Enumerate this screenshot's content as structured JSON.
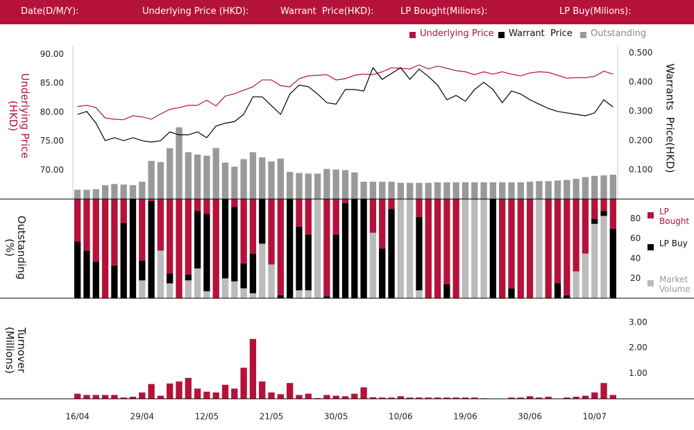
{
  "header": {
    "fields": [
      "Date(D/M/Y):",
      "Underlying Price (HKD):",
      "Warrant  Price(HKD):",
      "LP Bought(Milions):",
      "LP Buy(Milions):"
    ]
  },
  "chart_data": [
    {
      "type": "line",
      "ylabel": "Underlying Price (HKD)",
      "y2label": "Warrants  Price(HKD)",
      "legend": "top-right",
      "ylim": [
        65,
        91.5
      ],
      "yticks": [
        {
          "value": 70,
          "label": "70.00"
        },
        {
          "value": 75,
          "label": "75.00"
        },
        {
          "value": 80,
          "label": "80.00"
        },
        {
          "value": 85,
          "label": "85.00"
        },
        {
          "value": 90,
          "label": "90.00"
        }
      ],
      "y2lim": [
        0,
        0.525
      ],
      "y2ticks": [
        {
          "value": 0.1,
          "label": "0.100"
        },
        {
          "value": 0.2,
          "label": "0.200"
        },
        {
          "value": 0.3,
          "label": "0.300"
        },
        {
          "value": 0.4,
          "label": "0.400"
        },
        {
          "value": 0.5,
          "label": "0.500"
        }
      ],
      "series": [
        {
          "name": "Underlying Price",
          "color": "#b5123a",
          "values": [
            81.0,
            81.2,
            80.8,
            79.0,
            78.8,
            78.7,
            79.4,
            79.2,
            78.8,
            79.7,
            80.5,
            80.8,
            81.2,
            81.2,
            82.1,
            81.1,
            82.8,
            83.2,
            83.8,
            84.4,
            85.6,
            85.6,
            84.6,
            84.4,
            85.8,
            86.3,
            86.4,
            86.5,
            85.6,
            85.8,
            86.4,
            86.6,
            86.5,
            87.0,
            87.7,
            87.6,
            87.5,
            88.2,
            87.5,
            88.0,
            87.6,
            87.2,
            87.0,
            86.5,
            87.0,
            86.6,
            87.0,
            86.6,
            86.3,
            86.8,
            87.0,
            86.9,
            86.4,
            85.9,
            86.0,
            86.0,
            86.2,
            87.1,
            86.6
          ]
        },
        {
          "name": "Warrant  Price",
          "color": "#000000",
          "axis": "y2",
          "values": [
            0.29,
            0.3,
            0.26,
            0.2,
            0.21,
            0.2,
            0.21,
            0.2,
            0.195,
            0.2,
            0.23,
            0.22,
            0.22,
            0.23,
            0.21,
            0.25,
            0.26,
            0.265,
            0.29,
            0.35,
            0.35,
            0.32,
            0.29,
            0.36,
            0.39,
            0.385,
            0.36,
            0.33,
            0.325,
            0.375,
            0.375,
            0.37,
            0.45,
            0.41,
            0.43,
            0.45,
            0.41,
            0.445,
            0.42,
            0.39,
            0.34,
            0.355,
            0.335,
            0.375,
            0.4,
            0.375,
            0.33,
            0.37,
            0.36,
            0.34,
            0.325,
            0.31,
            0.3,
            0.295,
            0.29,
            0.285,
            0.295,
            0.34,
            0.315
          ]
        },
        {
          "name": "Outstanding",
          "color": "#999999",
          "type": "bar",
          "values": [
            66.6,
            66.6,
            66.7,
            67.4,
            67.6,
            67.5,
            67.4,
            68.0,
            71.6,
            71.4,
            73.8,
            77.4,
            73.1,
            72.7,
            72.5,
            73.8,
            71.3,
            70.6,
            71.9,
            73.1,
            72.2,
            71.5,
            72.0,
            69.7,
            69.5,
            69.4,
            69.4,
            70.2,
            70.1,
            70.0,
            69.6,
            68.0,
            68.0,
            68.0,
            68.0,
            67.8,
            67.8,
            67.8,
            67.8,
            67.9,
            67.9,
            67.9,
            67.9,
            67.9,
            67.9,
            67.9,
            67.9,
            67.9,
            67.9,
            68.0,
            68.1,
            68.1,
            68.2,
            68.3,
            68.5,
            68.8,
            69.0,
            69.1,
            69.2
          ]
        }
      ]
    },
    {
      "type": "stacked_bar",
      "ylabel": "Outstanding (%)",
      "legend": "right",
      "ylim": [
        0,
        100
      ],
      "yticks": [
        20,
        40,
        60,
        80
      ],
      "series": [
        {
          "name": "LP Bought",
          "color": "#b5123a",
          "values": [
            43,
            52,
            63,
            100,
            67,
            24,
            0,
            62,
            2,
            52,
            75,
            100,
            76,
            12,
            15,
            100,
            0,
            8,
            65,
            55,
            0,
            66,
            97,
            0,
            28,
            36,
            0,
            98,
            36,
            4,
            0,
            0,
            34,
            50,
            10,
            0,
            0,
            18,
            100,
            100,
            86,
            100,
            0,
            0,
            0,
            0,
            100,
            90,
            100,
            100,
            0,
            100,
            85,
            97,
            73,
            55,
            20,
            12,
            30
          ]
        },
        {
          "name": "LP Buy",
          "color": "#000000",
          "values": [
            57,
            48,
            37,
            0,
            33,
            76,
            100,
            20,
            98,
            0,
            10,
            0,
            6,
            58,
            78,
            0,
            80,
            75,
            25,
            40,
            45,
            0,
            3,
            100,
            64,
            56,
            0,
            2,
            64,
            96,
            100,
            100,
            0,
            50,
            90,
            0,
            0,
            74,
            0,
            0,
            14,
            0,
            0,
            0,
            0,
            100,
            0,
            10,
            0,
            0,
            0,
            0,
            15,
            3,
            0,
            0,
            5,
            5,
            70
          ]
        },
        {
          "name": "Market Volume",
          "color": "#bbbbbb",
          "values": [
            0,
            0,
            0,
            0,
            0,
            0,
            0,
            18,
            0,
            48,
            15,
            0,
            18,
            30,
            7,
            0,
            20,
            17,
            10,
            5,
            55,
            34,
            0,
            0,
            8,
            8,
            100,
            0,
            0,
            0,
            0,
            0,
            66,
            0,
            0,
            100,
            100,
            8,
            0,
            0,
            0,
            0,
            100,
            100,
            100,
            0,
            0,
            0,
            0,
            0,
            100,
            0,
            0,
            0,
            27,
            45,
            75,
            83,
            0
          ]
        }
      ]
    },
    {
      "type": "bar",
      "ylabel": "Turnover (Millions)",
      "color": "#b5123a",
      "ylim": [
        0,
        3.35
      ],
      "yticks": [
        {
          "value": 1,
          "label": "1.00"
        },
        {
          "value": 2,
          "label": "2.00"
        },
        {
          "value": 3,
          "label": "3.00"
        }
      ],
      "categories": [
        "16/04",
        null,
        null,
        null,
        null,
        null,
        null,
        "29/04",
        null,
        null,
        null,
        null,
        null,
        null,
        "12/05",
        null,
        null,
        null,
        null,
        null,
        null,
        "21/05",
        null,
        null,
        null,
        null,
        null,
        null,
        "30/05",
        null,
        null,
        null,
        null,
        null,
        null,
        "10/06",
        null,
        null,
        null,
        null,
        null,
        null,
        "19/06",
        null,
        null,
        null,
        null,
        null,
        null,
        "30/06",
        null,
        null,
        null,
        null,
        null,
        null,
        "10/07",
        null,
        null
      ],
      "values": [
        0.2,
        0.15,
        0.15,
        0.15,
        0.15,
        0.05,
        0.08,
        0.25,
        0.58,
        0.12,
        0.6,
        0.68,
        0.82,
        0.4,
        0.28,
        0.25,
        0.55,
        0.4,
        1.22,
        2.35,
        0.68,
        0.25,
        0.18,
        0.62,
        0.15,
        0.2,
        0.03,
        0.15,
        0.12,
        0.1,
        0.2,
        0.45,
        0.06,
        0.05,
        0.05,
        0.1,
        0.05,
        0.05,
        0.05,
        0.05,
        0.05,
        0.05,
        0.05,
        0.05,
        0.02,
        0,
        0,
        0.05,
        0.05,
        0.1,
        0.05,
        0.08,
        0,
        0.05,
        0.08,
        0.12,
        0.25,
        0.62,
        0.15
      ]
    }
  ]
}
